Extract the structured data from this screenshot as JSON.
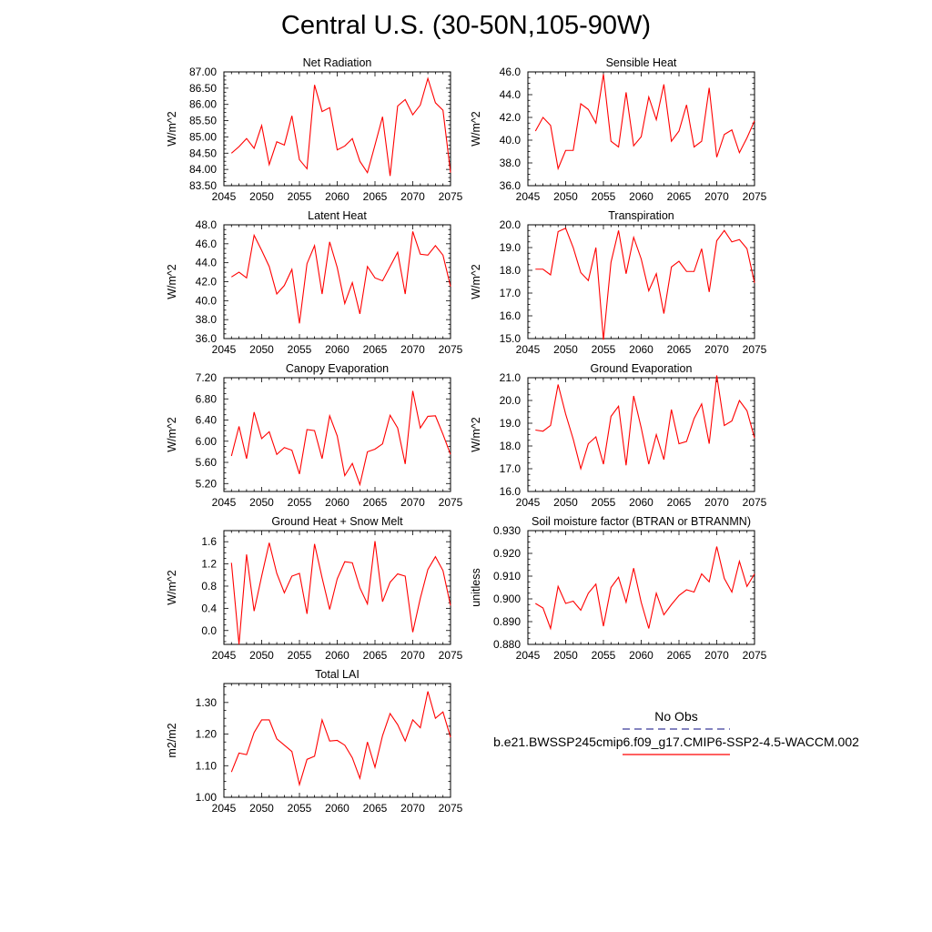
{
  "title": "Central U.S. (30-50N,105-90W)",
  "legend": {
    "items": [
      {
        "label": "No Obs",
        "color": "#3b3b9a",
        "dash": "dashed"
      },
      {
        "label": "b.e21.BWSSP245cmip6.f09_g17.CMIP6-SSP2-4.5-WACCM.002",
        "color": "#ff0000",
        "dash": "solid"
      }
    ]
  },
  "chart_data": [
    {
      "type": "line",
      "title": "Net Radiation",
      "ylabel": "W/m^2",
      "xlim": [
        2045,
        2075
      ],
      "ylim": [
        83.5,
        87.0
      ],
      "xticks": [
        "2045",
        "2050",
        "2055",
        "2060",
        "2065",
        "2070",
        "2075"
      ],
      "yticks": [
        "83.50",
        "84.00",
        "84.50",
        "85.00",
        "85.50",
        "86.00",
        "86.50",
        "87.00"
      ],
      "series": [
        {
          "color": "#ff0000",
          "x_start": 2046,
          "values": [
            84.5,
            84.7,
            84.95,
            84.65,
            85.35,
            84.15,
            84.85,
            84.75,
            85.65,
            84.3,
            84.02,
            86.6,
            85.78,
            85.9,
            84.6,
            84.72,
            84.95,
            84.25,
            83.9,
            84.75,
            85.62,
            83.8,
            85.95,
            86.15,
            85.68,
            85.98,
            86.8,
            86.05,
            85.82,
            83.9
          ]
        }
      ]
    },
    {
      "type": "line",
      "title": "Sensible Heat",
      "ylabel": "W/m^2",
      "xlim": [
        2045,
        2075
      ],
      "ylim": [
        36.0,
        46.0
      ],
      "xticks": [
        "2045",
        "2050",
        "2055",
        "2060",
        "2065",
        "2070",
        "2075"
      ],
      "yticks": [
        "36.0",
        "38.0",
        "40.0",
        "42.0",
        "44.0",
        "46.0"
      ],
      "series": [
        {
          "color": "#ff0000",
          "x_start": 2046,
          "values": [
            40.8,
            42.0,
            41.3,
            37.5,
            39.1,
            39.1,
            43.2,
            42.7,
            41.5,
            45.8,
            39.9,
            39.4,
            44.2,
            39.5,
            40.3,
            43.8,
            41.8,
            44.9,
            39.9,
            40.8,
            43.1,
            39.4,
            39.9,
            44.6,
            38.5,
            40.5,
            40.9,
            38.9,
            40.2,
            41.7
          ]
        }
      ]
    },
    {
      "type": "line",
      "title": "Latent Heat",
      "ylabel": "W/m^2",
      "xlim": [
        2045,
        2075
      ],
      "ylim": [
        36.0,
        48.0
      ],
      "xticks": [
        "2045",
        "2050",
        "2055",
        "2060",
        "2065",
        "2070",
        "2075"
      ],
      "yticks": [
        "36.0",
        "38.0",
        "40.0",
        "42.0",
        "44.0",
        "46.0",
        "48.0"
      ],
      "series": [
        {
          "color": "#ff0000",
          "x_start": 2046,
          "values": [
            42.5,
            43.0,
            42.4,
            46.9,
            45.3,
            43.6,
            40.7,
            41.6,
            43.3,
            37.6,
            43.9,
            45.8,
            40.7,
            46.2,
            43.5,
            39.7,
            41.9,
            38.6,
            43.6,
            42.4,
            42.1,
            43.6,
            45.1,
            40.7,
            47.3,
            44.9,
            44.8,
            45.8,
            44.8,
            41.5
          ]
        }
      ]
    },
    {
      "type": "line",
      "title": "Transpiration",
      "ylabel": "W/m^2",
      "xlim": [
        2045,
        2075
      ],
      "ylim": [
        15.0,
        20.0
      ],
      "xticks": [
        "2045",
        "2050",
        "2055",
        "2060",
        "2065",
        "2070",
        "2075"
      ],
      "yticks": [
        "15.0",
        "16.0",
        "17.0",
        "18.0",
        "19.0",
        "20.0"
      ],
      "series": [
        {
          "color": "#ff0000",
          "x_start": 2046,
          "values": [
            18.05,
            18.05,
            17.8,
            19.7,
            19.85,
            19.0,
            17.9,
            17.55,
            19.0,
            14.95,
            18.35,
            19.75,
            17.85,
            19.45,
            18.5,
            17.1,
            17.85,
            16.1,
            18.15,
            18.4,
            17.95,
            17.95,
            18.95,
            17.05,
            19.3,
            19.75,
            19.25,
            19.35,
            18.95,
            17.45
          ]
        }
      ]
    },
    {
      "type": "line",
      "title": "Canopy Evaporation",
      "ylabel": "W/m^2",
      "xlim": [
        2045,
        2075
      ],
      "ylim": [
        5.05,
        7.2
      ],
      "xticks": [
        "2045",
        "2050",
        "2055",
        "2060",
        "2065",
        "2070",
        "2075"
      ],
      "yticks": [
        "5.20",
        "5.60",
        "6.00",
        "6.40",
        "6.80",
        "7.20"
      ],
      "series": [
        {
          "color": "#ff0000",
          "x_start": 2046,
          "values": [
            5.72,
            6.28,
            5.67,
            6.55,
            6.05,
            6.18,
            5.75,
            5.88,
            5.83,
            5.38,
            6.22,
            6.2,
            5.67,
            6.48,
            6.1,
            5.35,
            5.58,
            5.18,
            5.8,
            5.85,
            5.95,
            6.49,
            6.25,
            5.57,
            6.95,
            6.25,
            6.47,
            6.48,
            6.13,
            5.75
          ]
        }
      ]
    },
    {
      "type": "line",
      "title": "Ground Evaporation",
      "ylabel": "W/m^2",
      "xlim": [
        2045,
        2075
      ],
      "ylim": [
        16.0,
        21.0
      ],
      "xticks": [
        "2045",
        "2050",
        "2055",
        "2060",
        "2065",
        "2070",
        "2075"
      ],
      "yticks": [
        "16.0",
        "17.0",
        "18.0",
        "19.0",
        "20.0",
        "21.0"
      ],
      "series": [
        {
          "color": "#ff0000",
          "x_start": 2046,
          "values": [
            18.7,
            18.65,
            18.9,
            20.7,
            19.4,
            18.3,
            17.0,
            18.1,
            18.4,
            17.2,
            19.3,
            19.75,
            17.15,
            20.2,
            18.8,
            17.2,
            18.5,
            17.4,
            19.6,
            18.1,
            18.2,
            19.2,
            19.85,
            18.1,
            21.1,
            18.9,
            19.1,
            20.0,
            19.55,
            18.35
          ]
        }
      ]
    },
    {
      "type": "line",
      "title": "Ground Heat + Snow Melt",
      "ylabel": "W/m^2",
      "xlim": [
        2045,
        2075
      ],
      "ylim": [
        -0.25,
        1.8
      ],
      "xticks": [
        "2045",
        "2050",
        "2055",
        "2060",
        "2065",
        "2070",
        "2075"
      ],
      "yticks": [
        "0.0",
        "0.4",
        "0.8",
        "1.2",
        "1.6"
      ],
      "series": [
        {
          "color": "#ff0000",
          "x_start": 2046,
          "values": [
            1.22,
            -0.25,
            1.37,
            0.35,
            0.98,
            1.58,
            1.03,
            0.68,
            0.98,
            1.03,
            0.3,
            1.56,
            0.95,
            0.38,
            0.93,
            1.24,
            1.22,
            0.77,
            0.48,
            1.61,
            0.52,
            0.87,
            1.02,
            0.98,
            -0.03,
            0.58,
            1.1,
            1.33,
            1.08,
            0.45
          ]
        }
      ]
    },
    {
      "type": "line",
      "title": "Soil moisture factor (BTRAN or BTRANMN)",
      "ylabel": "unitless",
      "xlim": [
        2045,
        2075
      ],
      "ylim": [
        0.88,
        0.93
      ],
      "xticks": [
        "2045",
        "2050",
        "2055",
        "2060",
        "2065",
        "2070",
        "2075"
      ],
      "yticks": [
        "0.880",
        "0.890",
        "0.900",
        "0.910",
        "0.920",
        "0.930"
      ],
      "series": [
        {
          "color": "#ff0000",
          "x_start": 2046,
          "values": [
            0.898,
            0.896,
            0.887,
            0.9055,
            0.898,
            0.899,
            0.895,
            0.9025,
            0.9065,
            0.888,
            0.905,
            0.9095,
            0.8985,
            0.9135,
            0.8985,
            0.887,
            0.9025,
            0.893,
            0.8975,
            0.9015,
            0.904,
            0.903,
            0.911,
            0.9075,
            0.923,
            0.909,
            0.903,
            0.9165,
            0.9055,
            0.911
          ]
        }
      ]
    },
    {
      "type": "line",
      "title": "Total LAI",
      "ylabel": "m2/m2",
      "xlim": [
        2045,
        2075
      ],
      "ylim": [
        1.0,
        1.36
      ],
      "xticks": [
        "2045",
        "2050",
        "2055",
        "2060",
        "2065",
        "2070",
        "2075"
      ],
      "yticks": [
        "1.00",
        "1.10",
        "1.20",
        "1.30"
      ],
      "series": [
        {
          "color": "#ff0000",
          "x_start": 2046,
          "values": [
            1.08,
            1.14,
            1.135,
            1.205,
            1.245,
            1.245,
            1.185,
            1.165,
            1.145,
            1.04,
            1.12,
            1.13,
            1.245,
            1.178,
            1.18,
            1.165,
            1.125,
            1.06,
            1.175,
            1.095,
            1.195,
            1.265,
            1.23,
            1.178,
            1.245,
            1.22,
            1.335,
            1.25,
            1.27,
            1.19
          ]
        }
      ]
    }
  ]
}
